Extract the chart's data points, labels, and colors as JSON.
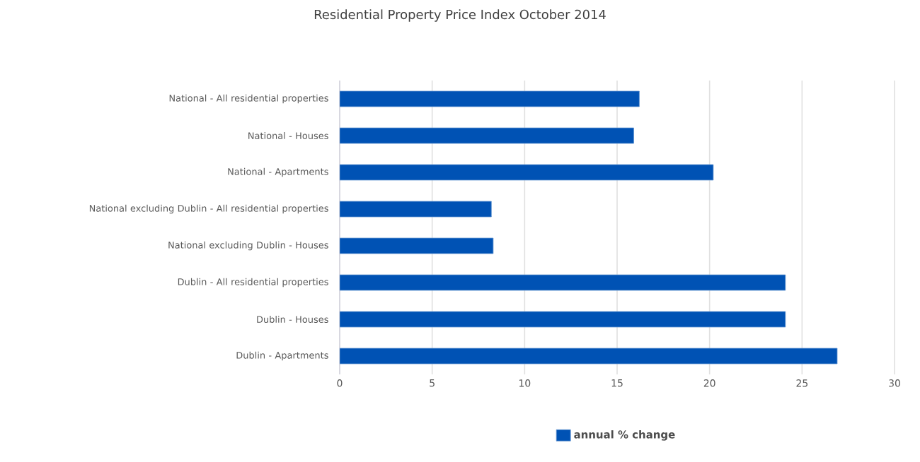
{
  "chart_data": {
    "type": "bar",
    "orientation": "horizontal",
    "title": "Residential Property Price Index October 2014",
    "categories": [
      "National - All residential properties",
      "National - Houses",
      "National - Apartments",
      "National excluding Dublin - All residential properties",
      "National excluding Dublin - Houses",
      "Dublin - All residential properties",
      "Dublin - Houses",
      "Dublin - Apartments"
    ],
    "series": [
      {
        "name": "annual % change",
        "color": "#0052b4",
        "values": [
          16.2,
          15.9,
          20.2,
          8.2,
          8.3,
          24.1,
          24.1,
          26.9
        ]
      }
    ],
    "xlim": [
      0,
      30
    ],
    "xticks": [
      0,
      5,
      10,
      15,
      20,
      25,
      30
    ],
    "grid": "x",
    "legend": "bottom"
  }
}
